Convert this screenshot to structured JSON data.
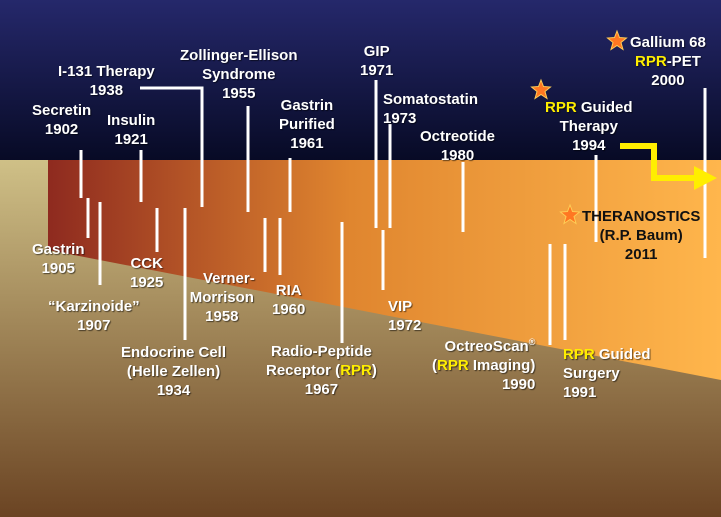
{
  "colors": {
    "sky_top": "#25286b",
    "sky_bottom": "#050820",
    "band_left": "#8e2a1f",
    "band_mid": "#e0862f",
    "band_right": "#ffb64c",
    "ground_top": "#cfc087",
    "ground_bottom": "#6b4423",
    "highlight": "#ffee00",
    "arrow": "#ffee00",
    "star": "#ff7722"
  },
  "events": {
    "secretin": {
      "name": "Secretin",
      "year": "1902"
    },
    "gastrin": {
      "name": "Gastrin",
      "year": "1905"
    },
    "karzinoide": {
      "name": "“Karzinoide”",
      "year": "1907"
    },
    "insulin": {
      "name": "Insulin",
      "year": "1921"
    },
    "cck": {
      "name": "CCK",
      "year": "1925"
    },
    "endocrine": {
      "name": "Endocrine Cell",
      "name2": "(Helle Zellen)",
      "year": "1934"
    },
    "i131": {
      "name": "I-131 Therapy",
      "year": "1938"
    },
    "zollinger": {
      "name": "Zollinger-Ellison",
      "name2": "Syndrome",
      "year": "1955"
    },
    "verner": {
      "name": "Verner-",
      "name2": "Morrison",
      "year": "1958"
    },
    "ria": {
      "name": "RIA",
      "year": "1960"
    },
    "gastrin_purified": {
      "name": "Gastrin",
      "name2": "Purified",
      "year": "1961"
    },
    "rpr_receptor": {
      "name": "Radio-Peptide",
      "name2_pre": "Receptor (",
      "name2_hl": "RPR",
      "name2_post": ")",
      "year": "1967"
    },
    "gip": {
      "name": "GIP",
      "year": "1971"
    },
    "vip": {
      "name": "VIP",
      "year": "1972"
    },
    "somatostatin": {
      "name": "Somatostatin",
      "year": "1973"
    },
    "octreotide": {
      "name": "Octreotide",
      "year": "1980"
    },
    "octreoscan": {
      "name": "OctreoScan",
      "reg": "®",
      "name2_pre": "(",
      "name2_hl": "RPR",
      "name2_post": " Imaging)",
      "year": "1990"
    },
    "rpr_surgery": {
      "hl": "RPR",
      "name_post": " Guided",
      "name2": "Surgery",
      "year": "1991"
    },
    "rpr_therapy": {
      "hl": "RPR",
      "name_post": " Guided",
      "name2": "Therapy",
      "year": "1994"
    },
    "gallium": {
      "name": "Gallium 68",
      "hl": "RPR",
      "name2_post": "-PET",
      "year": "2000"
    },
    "theranostics": {
      "name": "THERANOSTICS",
      "name2": "(R.P. Baum)",
      "year": "2011"
    }
  }
}
